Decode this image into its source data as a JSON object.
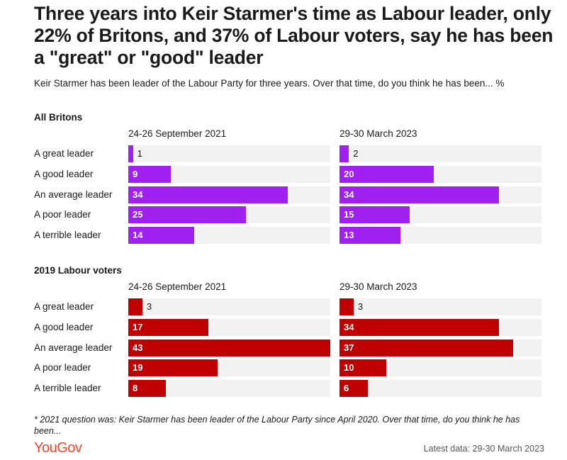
{
  "title": "Three years into Keir Starmer's time as Labour leader, only 22% of Britons, and 37% of Labour voters, say he has been a \"great\" or \"good\" leader",
  "subtitle": "Keir Starmer has been leader of the Labour Party for three years. Over that time, do you think he has been... %",
  "footnote": "* 2021 question was: Keir Starmer has been leader of the Labour Party since April 2020. Over that time, do you think he has been...",
  "logo": "YouGov",
  "latest": "Latest data: 29-30 March 2023",
  "colors": {
    "britons": "#a020f0",
    "labour": "#c00000",
    "track": "#f2f2f2",
    "brand": "#ff412c"
  },
  "chart_data": {
    "type": "bar",
    "orientation": "horizontal",
    "categories": [
      "A great leader",
      "A good leader",
      "An average leader",
      "A poor leader",
      "A terrible leader"
    ],
    "xlim": [
      0,
      43
    ],
    "panels": [
      {
        "group": "All Britons",
        "color": "#a020f0",
        "series": [
          {
            "name": "24-26 September 2021",
            "values": [
              1,
              9,
              34,
              25,
              14
            ]
          },
          {
            "name": "29-30 March 2023",
            "values": [
              2,
              20,
              34,
              15,
              13
            ]
          }
        ]
      },
      {
        "group": "2019 Labour voters",
        "color": "#c00000",
        "series": [
          {
            "name": "24-26 September 2021",
            "values": [
              3,
              17,
              43,
              19,
              8
            ]
          },
          {
            "name": "29-30 March 2023",
            "values": [
              3,
              34,
              37,
              10,
              6
            ]
          }
        ]
      }
    ]
  }
}
